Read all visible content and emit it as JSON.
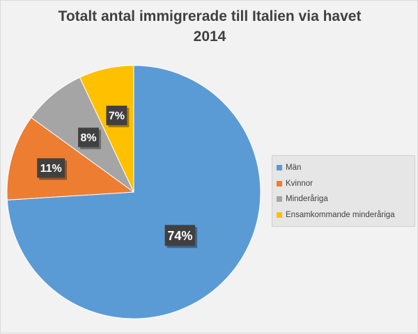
{
  "chart_data": {
    "type": "pie",
    "title_lines": [
      "Totalt antal immigrerade till Italien via havet",
      "2014"
    ],
    "categories": [
      "Män",
      "Kvinnor",
      "Minderåriga",
      "Ensamkommande minderåriga"
    ],
    "values": [
      74,
      11,
      8,
      7
    ],
    "labels": [
      "74%",
      "11%",
      "8%",
      "7%"
    ],
    "colors": [
      "#5b9bd5",
      "#ed7d31",
      "#a5a5a5",
      "#ffc000"
    ],
    "legend_position": "right"
  }
}
